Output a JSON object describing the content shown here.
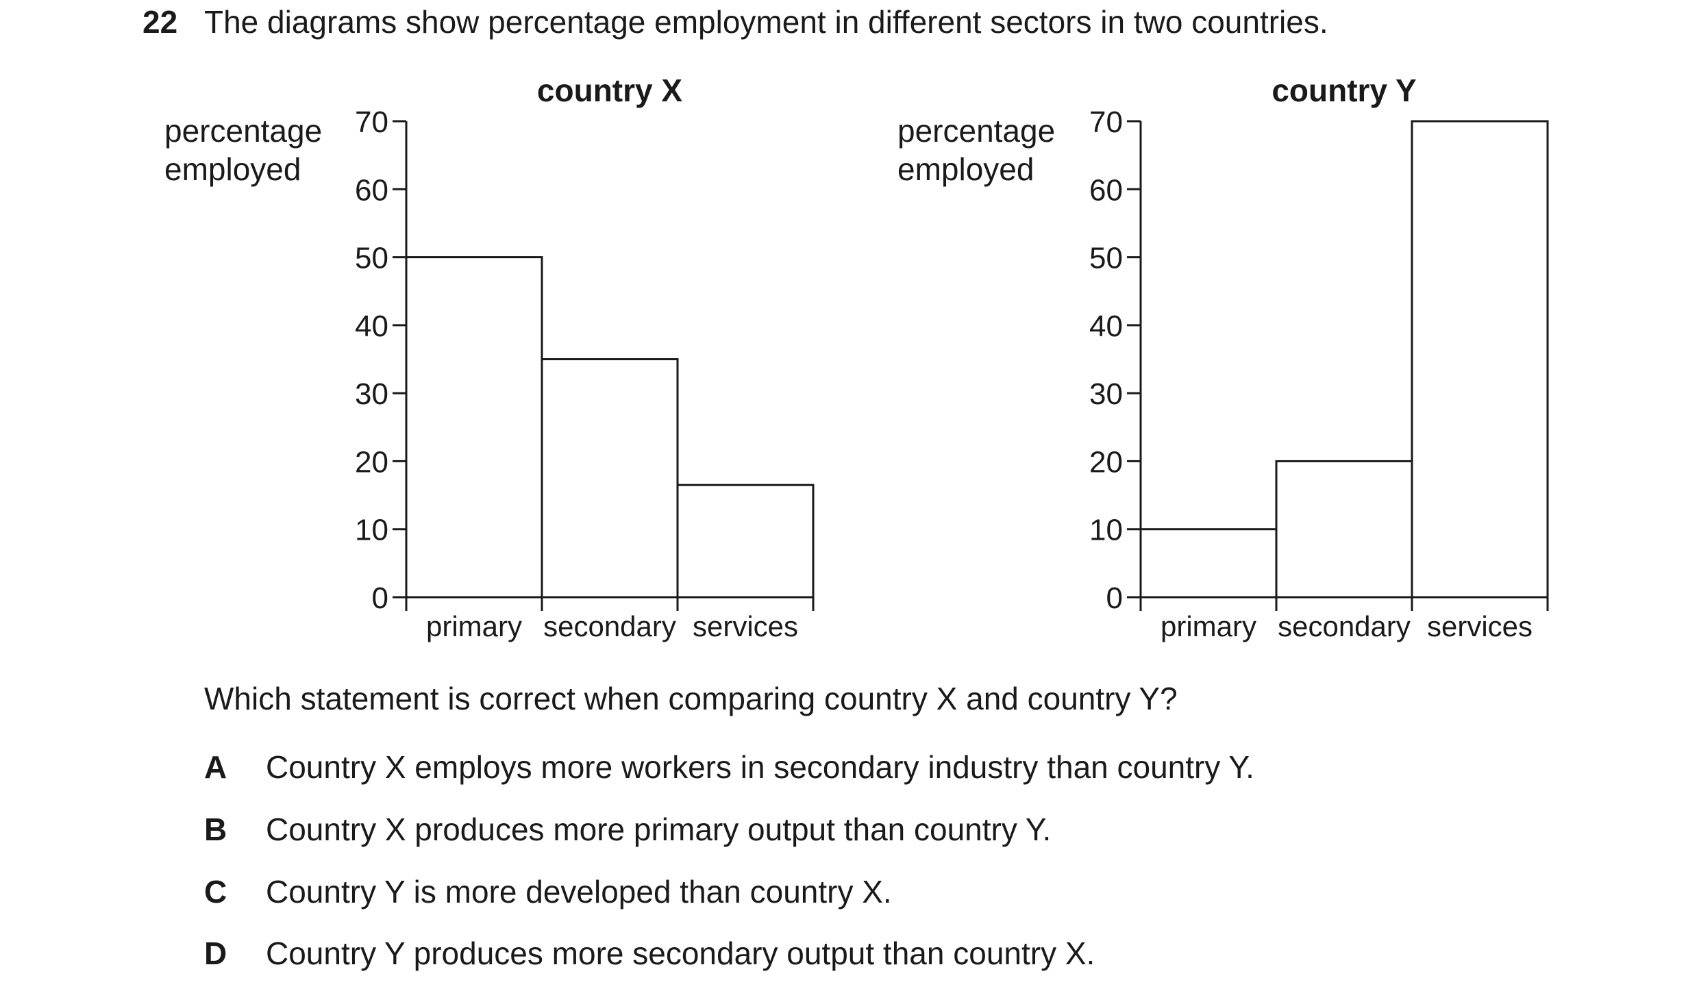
{
  "question": {
    "number": "22",
    "text": "The diagrams show percentage employment in different sectors in two countries."
  },
  "chart_data": [
    {
      "type": "bar",
      "title": "country X",
      "ylabel": "percentage employed",
      "xlabel": "",
      "categories": [
        "primary",
        "secondary",
        "services"
      ],
      "values": [
        50,
        35,
        16.5
      ],
      "ylim": [
        0,
        70
      ],
      "yticks": [
        0,
        10,
        20,
        30,
        40,
        50,
        60,
        70
      ],
      "grid": false
    },
    {
      "type": "bar",
      "title": "country Y",
      "ylabel": "percentage employed",
      "xlabel": "",
      "categories": [
        "primary",
        "secondary",
        "services"
      ],
      "values": [
        10,
        20,
        70
      ],
      "ylim": [
        0,
        70
      ],
      "yticks": [
        0,
        10,
        20,
        30,
        40,
        50,
        60,
        70
      ],
      "grid": false
    }
  ],
  "prompt": "Which statement is correct when comparing country X and country Y?",
  "options": [
    {
      "letter": "A",
      "text": "Country X employs more workers in secondary industry than country Y."
    },
    {
      "letter": "B",
      "text": "Country X produces more primary output than country Y."
    },
    {
      "letter": "C",
      "text": "Country Y is more developed than country X."
    },
    {
      "letter": "D",
      "text": "Country Y produces more secondary output than country X."
    }
  ]
}
